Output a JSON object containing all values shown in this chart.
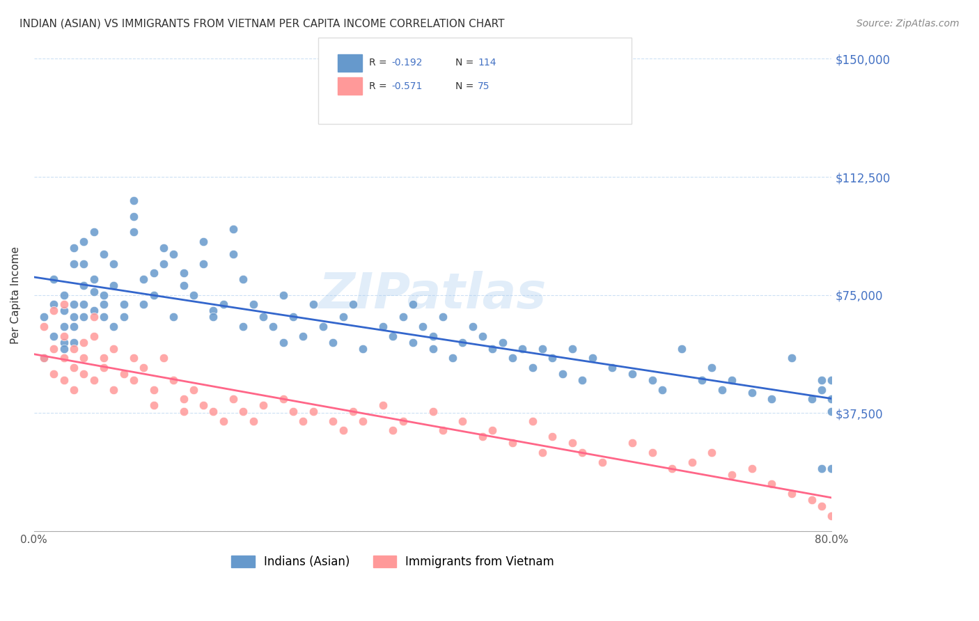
{
  "title": "INDIAN (ASIAN) VS IMMIGRANTS FROM VIETNAM PER CAPITA INCOME CORRELATION CHART",
  "source": "Source: ZipAtlas.com",
  "xlabel": "",
  "ylabel": "Per Capita Income",
  "xlim": [
    0.0,
    0.8
  ],
  "ylim": [
    0,
    150000
  ],
  "yticks": [
    0,
    37500,
    75000,
    112500,
    150000
  ],
  "ytick_labels": [
    "",
    "$37,500",
    "$75,000",
    "$112,500",
    "$150,000"
  ],
  "xticks": [
    0.0,
    0.1,
    0.2,
    0.3,
    0.4,
    0.5,
    0.6,
    0.7,
    0.8
  ],
  "xtick_labels": [
    "0.0%",
    "",
    "",
    "",
    "",
    "",
    "",
    "",
    "80.0%"
  ],
  "color_blue": "#6699CC",
  "color_pink": "#FF9999",
  "line_blue": "#3366CC",
  "line_pink": "#FF6688",
  "R_blue": -0.192,
  "N_blue": 114,
  "R_pink": -0.571,
  "N_pink": 75,
  "watermark": "ZIPatlas",
  "legend_label_blue": "Indians (Asian)",
  "legend_label_pink": "Immigrants from Vietnam",
  "blue_x": [
    0.01,
    0.01,
    0.02,
    0.02,
    0.02,
    0.03,
    0.03,
    0.03,
    0.03,
    0.03,
    0.04,
    0.04,
    0.04,
    0.04,
    0.04,
    0.04,
    0.05,
    0.05,
    0.05,
    0.05,
    0.05,
    0.06,
    0.06,
    0.06,
    0.06,
    0.07,
    0.07,
    0.07,
    0.07,
    0.08,
    0.08,
    0.08,
    0.09,
    0.09,
    0.1,
    0.1,
    0.1,
    0.11,
    0.11,
    0.12,
    0.12,
    0.13,
    0.13,
    0.14,
    0.14,
    0.15,
    0.15,
    0.16,
    0.17,
    0.17,
    0.18,
    0.18,
    0.19,
    0.2,
    0.2,
    0.21,
    0.21,
    0.22,
    0.23,
    0.24,
    0.25,
    0.25,
    0.26,
    0.27,
    0.28,
    0.29,
    0.3,
    0.31,
    0.32,
    0.33,
    0.35,
    0.36,
    0.37,
    0.38,
    0.38,
    0.39,
    0.4,
    0.4,
    0.41,
    0.42,
    0.43,
    0.44,
    0.45,
    0.46,
    0.47,
    0.48,
    0.49,
    0.5,
    0.51,
    0.52,
    0.53,
    0.54,
    0.55,
    0.56,
    0.58,
    0.6,
    0.62,
    0.63,
    0.65,
    0.67,
    0.68,
    0.69,
    0.7,
    0.72,
    0.74,
    0.76,
    0.78,
    0.79,
    0.79,
    0.79,
    0.8,
    0.8,
    0.8,
    0.8
  ],
  "blue_y": [
    68000,
    55000,
    72000,
    80000,
    62000,
    65000,
    70000,
    60000,
    58000,
    75000,
    85000,
    90000,
    68000,
    72000,
    65000,
    60000,
    78000,
    92000,
    85000,
    72000,
    68000,
    76000,
    80000,
    95000,
    70000,
    88000,
    75000,
    68000,
    72000,
    78000,
    85000,
    65000,
    72000,
    68000,
    100000,
    105000,
    95000,
    80000,
    72000,
    82000,
    75000,
    90000,
    85000,
    88000,
    68000,
    78000,
    82000,
    75000,
    85000,
    92000,
    70000,
    68000,
    72000,
    96000,
    88000,
    80000,
    65000,
    72000,
    68000,
    65000,
    60000,
    75000,
    68000,
    62000,
    72000,
    65000,
    60000,
    68000,
    72000,
    58000,
    65000,
    62000,
    68000,
    72000,
    60000,
    65000,
    58000,
    62000,
    68000,
    55000,
    60000,
    65000,
    62000,
    58000,
    60000,
    55000,
    58000,
    52000,
    58000,
    55000,
    50000,
    58000,
    48000,
    55000,
    52000,
    50000,
    48000,
    45000,
    58000,
    48000,
    52000,
    45000,
    48000,
    44000,
    42000,
    55000,
    42000,
    48000,
    45000,
    20000,
    38000,
    42000,
    48000,
    20000
  ],
  "pink_x": [
    0.01,
    0.01,
    0.02,
    0.02,
    0.02,
    0.03,
    0.03,
    0.03,
    0.03,
    0.04,
    0.04,
    0.04,
    0.05,
    0.05,
    0.05,
    0.06,
    0.06,
    0.06,
    0.07,
    0.07,
    0.08,
    0.08,
    0.09,
    0.1,
    0.1,
    0.11,
    0.12,
    0.12,
    0.13,
    0.14,
    0.15,
    0.15,
    0.16,
    0.17,
    0.18,
    0.19,
    0.2,
    0.21,
    0.22,
    0.23,
    0.25,
    0.26,
    0.27,
    0.28,
    0.3,
    0.31,
    0.32,
    0.33,
    0.35,
    0.36,
    0.37,
    0.4,
    0.41,
    0.43,
    0.45,
    0.46,
    0.48,
    0.5,
    0.51,
    0.52,
    0.54,
    0.55,
    0.57,
    0.6,
    0.62,
    0.64,
    0.66,
    0.68,
    0.7,
    0.72,
    0.74,
    0.76,
    0.78,
    0.79,
    0.8
  ],
  "pink_y": [
    65000,
    55000,
    70000,
    58000,
    50000,
    62000,
    55000,
    48000,
    72000,
    58000,
    52000,
    45000,
    60000,
    55000,
    50000,
    68000,
    62000,
    48000,
    55000,
    52000,
    58000,
    45000,
    50000,
    55000,
    48000,
    52000,
    45000,
    40000,
    55000,
    48000,
    42000,
    38000,
    45000,
    40000,
    38000,
    35000,
    42000,
    38000,
    35000,
    40000,
    42000,
    38000,
    35000,
    38000,
    35000,
    32000,
    38000,
    35000,
    40000,
    32000,
    35000,
    38000,
    32000,
    35000,
    30000,
    32000,
    28000,
    35000,
    25000,
    30000,
    28000,
    25000,
    22000,
    28000,
    25000,
    20000,
    22000,
    25000,
    18000,
    20000,
    15000,
    12000,
    10000,
    8000,
    5000
  ]
}
